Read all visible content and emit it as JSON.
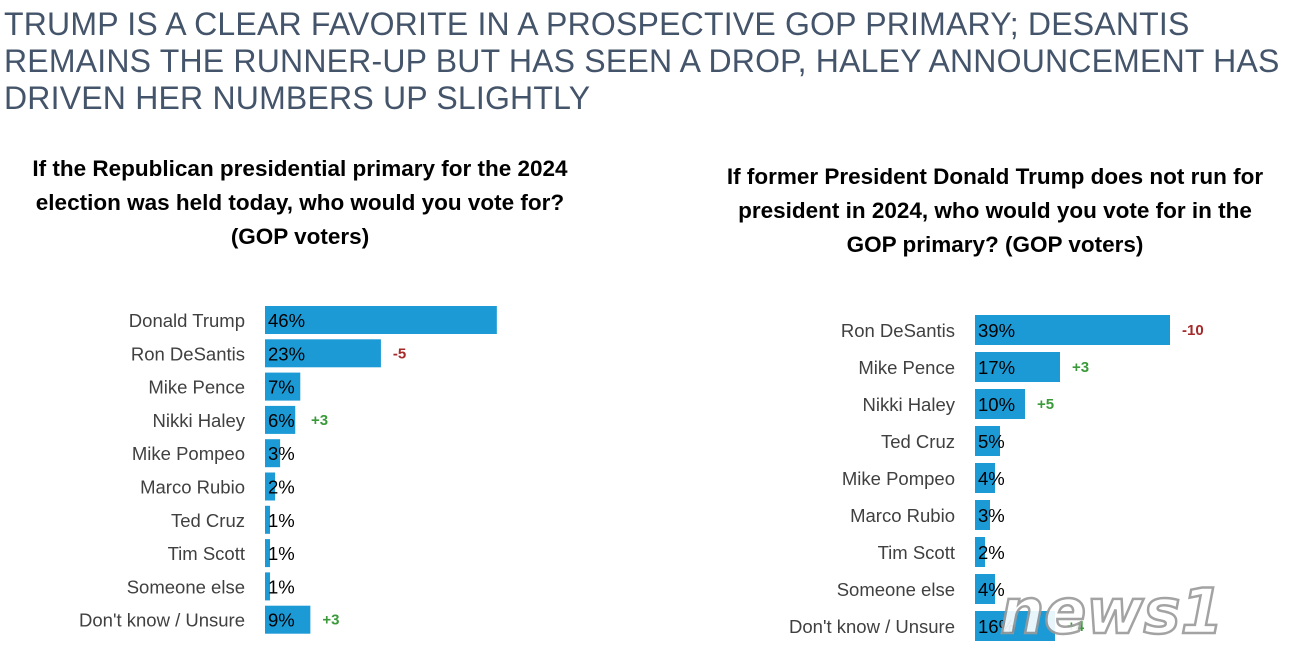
{
  "headline": "TRUMP IS A CLEAR FAVORITE IN A PROSPECTIVE GOP PRIMARY; DESANTIS REMAINS THE RUNNER-UP BUT HAS SEEN A DROP, HALEY ANNOUNCEMENT HAS DRIVEN HER NUMBERS UP SLIGHTLY",
  "colors": {
    "bar": "#1b9ad6",
    "positive": "#3a9a3a",
    "negative": "#a52a2a"
  },
  "watermark": {
    "text": "news1"
  },
  "chart_data": [
    {
      "type": "bar",
      "orientation": "horizontal",
      "title": "If the Republican presidential primary for the 2024 election was held today, who would you vote for? (GOP voters)",
      "categories": [
        "Donald Trump",
        "Ron DeSantis",
        "Mike Pence",
        "Nikki Haley",
        "Mike Pompeo",
        "Marco Rubio",
        "Ted Cruz",
        "Tim Scott",
        "Someone else",
        "Don't know / Unsure"
      ],
      "values": [
        46,
        23,
        7,
        6,
        3,
        2,
        1,
        1,
        1,
        9
      ],
      "value_labels": [
        "46%",
        "23%",
        "7%",
        "6%",
        "3%",
        "2%",
        "1%",
        "1%",
        "1%",
        "9%"
      ],
      "changes": [
        "",
        "-5",
        "",
        "+3",
        "",
        "",
        "",
        "",
        "",
        "+3"
      ]
    },
    {
      "type": "bar",
      "orientation": "horizontal",
      "title": "If former President Donald Trump does not run for president in 2024, who would you vote for in the GOP primary? (GOP voters)",
      "categories": [
        "Ron DeSantis",
        "Mike Pence",
        "Nikki Haley",
        "Ted Cruz",
        "Mike Pompeo",
        "Marco Rubio",
        "Tim Scott",
        "Someone else",
        "Don't know / Unsure"
      ],
      "values": [
        39,
        17,
        10,
        5,
        4,
        3,
        2,
        4,
        16
      ],
      "value_labels": [
        "39%",
        "17%",
        "10%",
        "5%",
        "4%",
        "3%",
        "2%",
        "4%",
        "16%"
      ],
      "changes": [
        "-10",
        "+3",
        "+5",
        "",
        "",
        "",
        "",
        "",
        "+4"
      ]
    }
  ]
}
